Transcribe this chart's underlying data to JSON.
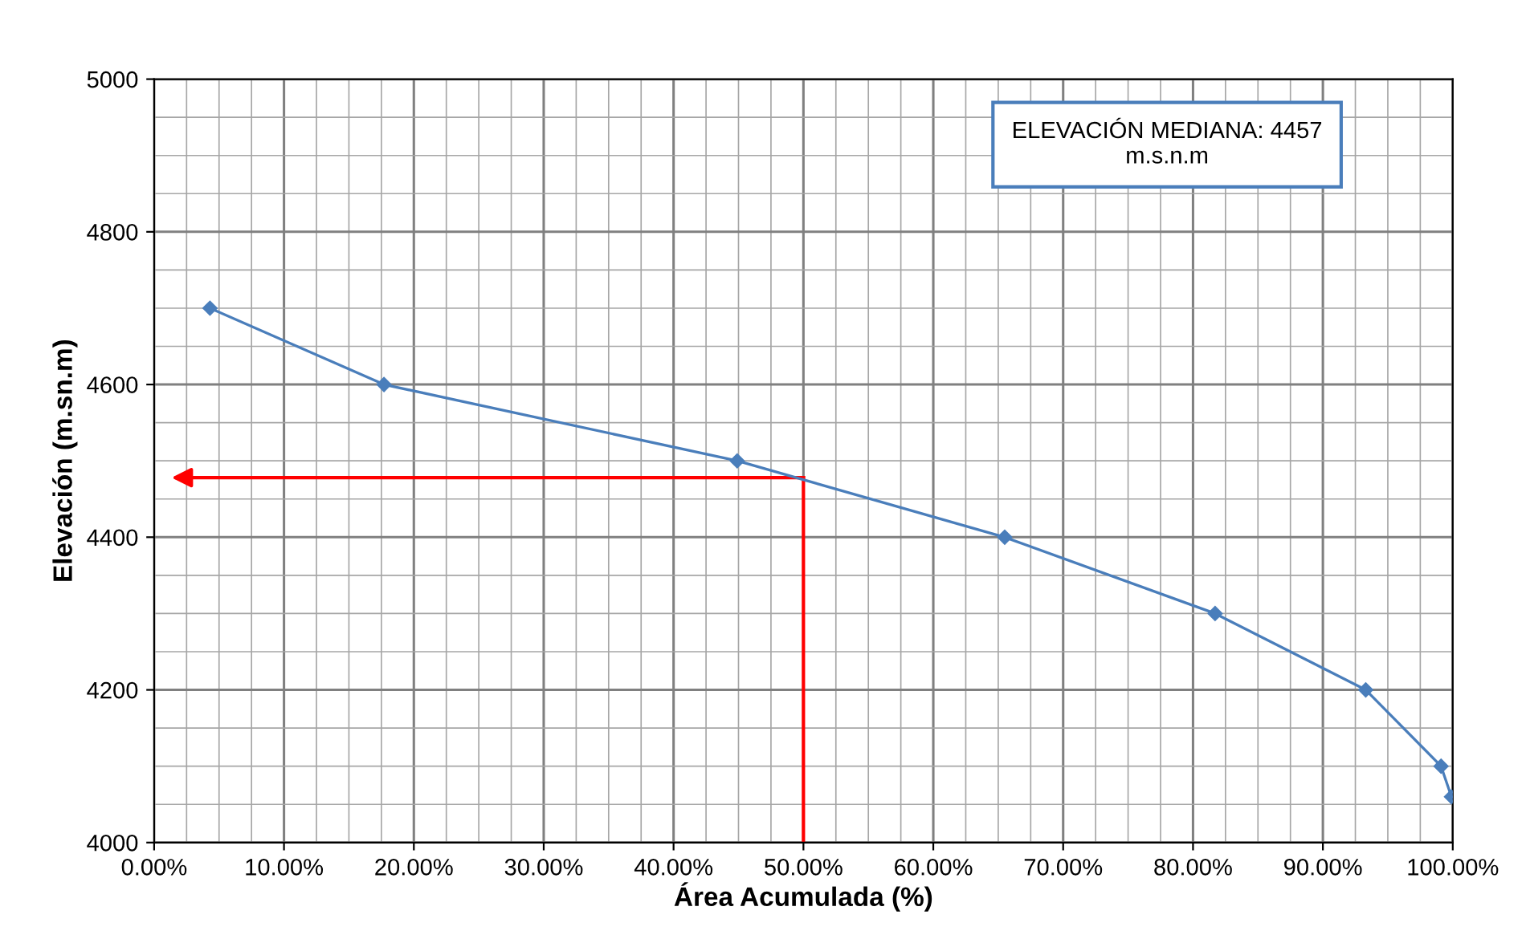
{
  "chart_data": {
    "type": "line",
    "xlabel": "Área Acumulada (%)",
    "ylabel": "Elevación (m.sn.m)",
    "annotations": [
      "ELEVACIÓN MEDIANA: 4457\nm.s.n.m"
    ],
    "x": [
      4.3,
      17.7,
      44.9,
      65.5,
      81.7,
      93.3,
      99.1,
      99.9
    ],
    "series": [
      {
        "color": "#4a7ebb",
        "values": [
          4700,
          4600,
          4500,
          4400,
          4300,
          4200,
          4100,
          4060
        ]
      }
    ],
    "xlim": [
      0,
      100
    ],
    "xticks": [
      {
        "value": 0,
        "label": "0.00%"
      },
      {
        "value": 10,
        "label": "10.00%"
      },
      {
        "value": 20,
        "label": "20.00%"
      },
      {
        "value": 30,
        "label": "30.00%"
      },
      {
        "value": 40,
        "label": "40.00%"
      },
      {
        "value": 50,
        "label": "50.00%"
      },
      {
        "value": 60,
        "label": "60.00%"
      },
      {
        "value": 70,
        "label": "70.00%"
      },
      {
        "value": 80,
        "label": "80.00%"
      },
      {
        "value": 90,
        "label": "90.00%"
      },
      {
        "value": 100,
        "label": "100.00%"
      }
    ],
    "ylim": [
      4000,
      5000
    ],
    "yticks": [
      4000,
      4200,
      4400,
      4600,
      4800,
      5000
    ],
    "ref_lines": [
      {
        "axis": "x",
        "value": 50,
        "color": "#ff0000"
      },
      {
        "axis": "y",
        "value": 4478,
        "color": "#ff0000"
      }
    ],
    "grid": true,
    "marker": "diamond",
    "line_style": "solid"
  }
}
